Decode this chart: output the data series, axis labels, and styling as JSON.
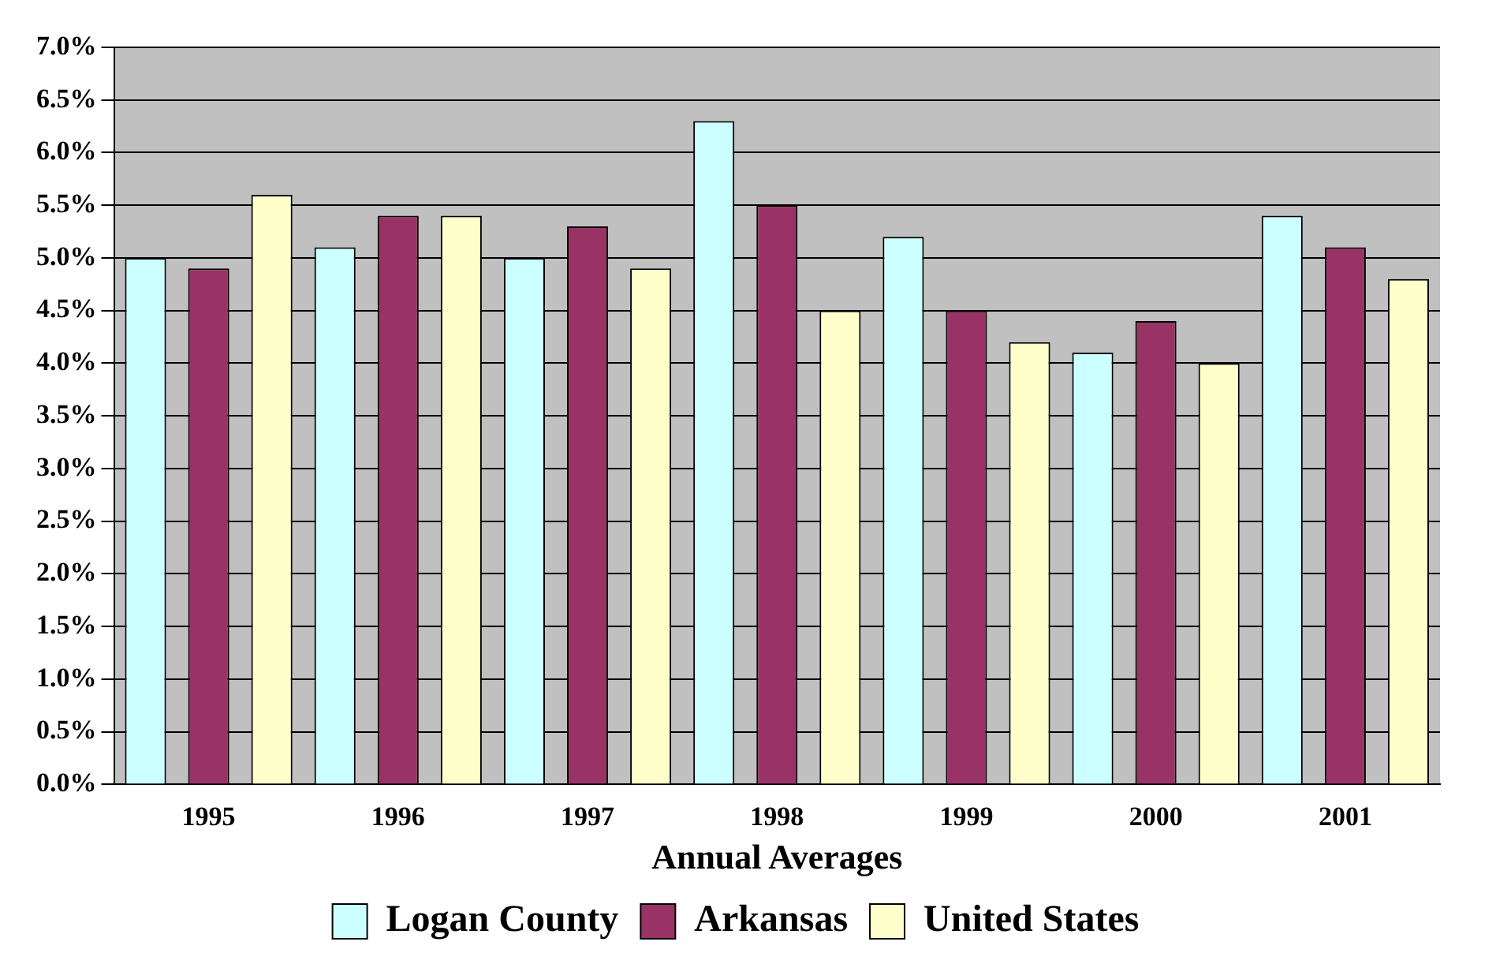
{
  "chart_data": {
    "type": "bar",
    "xlabel": "Annual Averages",
    "categories": [
      "1995",
      "1996",
      "1997",
      "1998",
      "1999",
      "2000",
      "2001"
    ],
    "series": [
      {
        "name": "Logan County",
        "color": "#ccffff",
        "values": [
          5.0,
          5.1,
          5.0,
          6.3,
          5.2,
          4.1,
          5.4
        ]
      },
      {
        "name": "Arkansas",
        "color": "#993366",
        "values": [
          4.9,
          5.4,
          5.3,
          5.5,
          4.5,
          4.4,
          5.1
        ]
      },
      {
        "name": "United States",
        "color": "#ffffcc",
        "values": [
          5.6,
          5.4,
          4.9,
          4.5,
          4.2,
          4.0,
          4.8
        ]
      }
    ],
    "ylim": [
      0,
      7
    ],
    "yticks": [
      {
        "value": 0,
        "label": "0.0%"
      },
      {
        "value": 0.5,
        "label": "0.5%"
      },
      {
        "value": 1,
        "label": "1.0%"
      },
      {
        "value": 1.5,
        "label": "1.5%"
      },
      {
        "value": 2,
        "label": "2.0%"
      },
      {
        "value": 2.5,
        "label": "2.5%"
      },
      {
        "value": 3,
        "label": "3.0%"
      },
      {
        "value": 3.5,
        "label": "3.5%"
      },
      {
        "value": 4,
        "label": "4.0%"
      },
      {
        "value": 4.5,
        "label": "4.5%"
      },
      {
        "value": 5,
        "label": "5.0%"
      },
      {
        "value": 5.5,
        "label": "5.5%"
      },
      {
        "value": 6,
        "label": "6.0%"
      },
      {
        "value": 6.5,
        "label": "6.5%"
      },
      {
        "value": 7,
        "label": "7.0%"
      }
    ],
    "grid": "y",
    "legend": "bottom"
  }
}
